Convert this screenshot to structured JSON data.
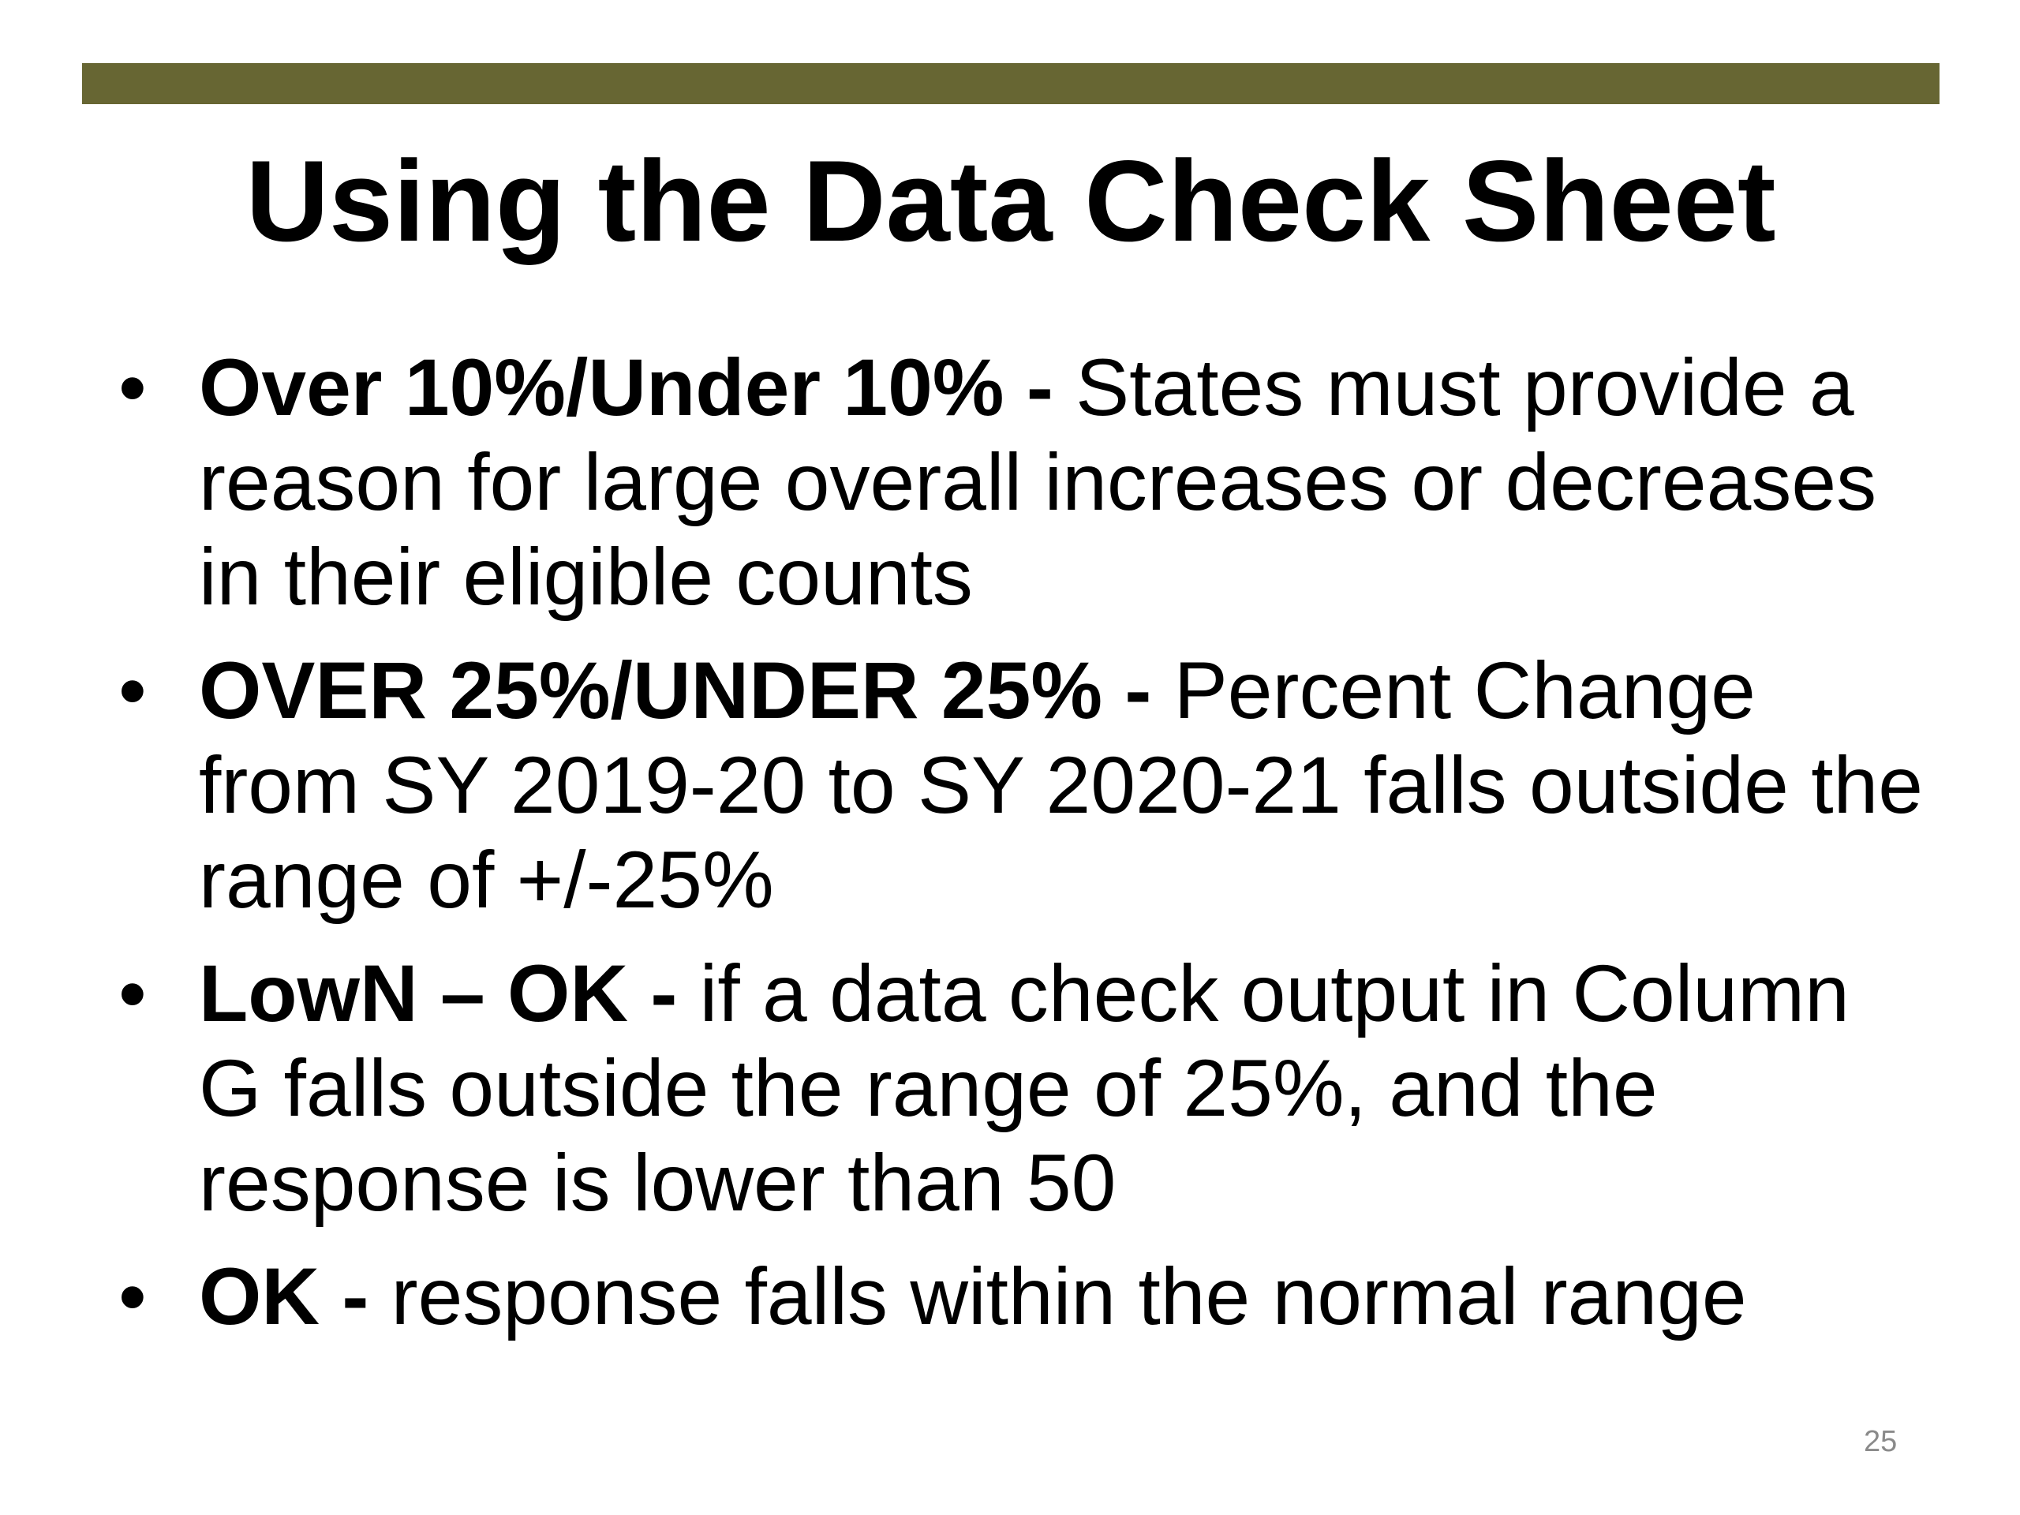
{
  "slide": {
    "accent_color": "#676633",
    "title": "Using the Data Check Sheet",
    "bullet_glyph": "•",
    "items": [
      {
        "term": "Over 10%/Under 10% -",
        "text": " States must provide a reason for large overall increases or decreases in their eligible counts"
      },
      {
        "term": "OVER 25%/UNDER 25% -",
        "text": " Percent Change from SY 2019-20 to SY 2020-21 falls outside the range of +/-25%"
      },
      {
        "term": "LowN – OK -",
        "text": " if a data check output in Column G falls outside the range of 25%, and the response is lower than 50"
      },
      {
        "term": "OK -",
        "text": " response falls within the normal range"
      }
    ],
    "page_number": "25"
  }
}
